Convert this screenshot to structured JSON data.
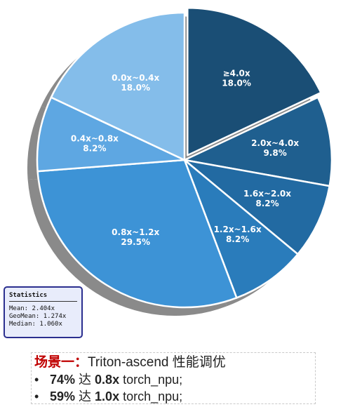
{
  "chart_data": {
    "type": "pie",
    "title": "",
    "slices": [
      {
        "label": "≥4.0x",
        "pct_text": "18.0%",
        "value": 18.0,
        "color": "#1a4e75",
        "explode": true
      },
      {
        "label": "2.0x~4.0x",
        "pct_text": "9.8%",
        "value": 9.8,
        "color": "#1f5f8f",
        "explode": false
      },
      {
        "label": "1.6x~2.0x",
        "pct_text": "8.2%",
        "value": 8.2,
        "color": "#226aa2",
        "explode": false
      },
      {
        "label": "1.2x~1.6x",
        "pct_text": "8.2%",
        "value": 8.2,
        "color": "#2a7cbb",
        "explode": false
      },
      {
        "label": "0.8x~1.2x",
        "pct_text": "29.5%",
        "value": 29.5,
        "color": "#3d93d6",
        "explode": false
      },
      {
        "label": "0.4x~0.8x",
        "pct_text": "8.2%",
        "value": 8.2,
        "color": "#5ea7e2",
        "explode": false
      },
      {
        "label": "0.0x~0.4x",
        "pct_text": "18.0%",
        "value": 18.0,
        "color": "#84bdea",
        "explode": false
      }
    ]
  },
  "stats": {
    "title": "Statistics",
    "mean": "Mean: 2.404x",
    "geomean": "GeoMean: 1.274x",
    "median": "Median: 1.060x"
  },
  "scenario": {
    "title_red": "场景一：",
    "title_rest": "Triton-ascend 性能调优",
    "bullets": [
      {
        "dot": "•",
        "pct": "74%",
        "mid": " 达 ",
        "target": "0.8x",
        "rest": " torch_npu;"
      },
      {
        "dot": "•",
        "pct": "59%",
        "mid": " 达 ",
        "target": "1.0x",
        "rest": " torch_npu;"
      }
    ]
  }
}
